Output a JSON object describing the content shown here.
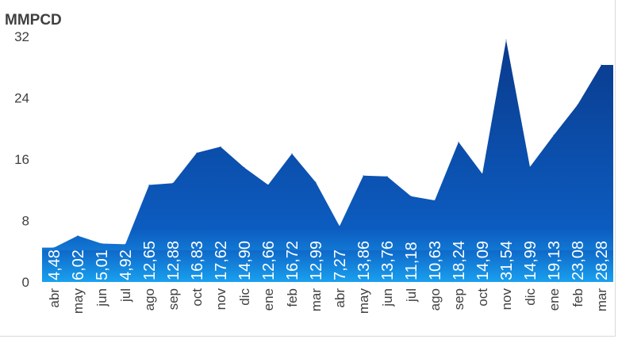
{
  "chart_data": {
    "type": "area",
    "ylabel": "MMPCD",
    "ylim": [
      0,
      32
    ],
    "yticks": [
      0,
      8,
      16,
      24,
      32
    ],
    "grid": false,
    "categories": [
      "abr",
      "may",
      "jun",
      "jul",
      "ago",
      "sep",
      "oct",
      "nov",
      "dic",
      "ene",
      "feb",
      "mar",
      "abr",
      "may",
      "jun",
      "jul",
      "ago",
      "sep",
      "oct",
      "nov",
      "dic",
      "ene",
      "feb",
      "mar"
    ],
    "values": [
      4.48,
      6.02,
      5.01,
      4.92,
      12.65,
      12.88,
      16.83,
      17.62,
      14.9,
      12.66,
      16.72,
      12.99,
      7.27,
      13.86,
      13.76,
      11.18,
      10.63,
      18.24,
      14.09,
      31.54,
      14.99,
      19.13,
      23.08,
      28.28
    ],
    "data_labels": [
      "4,48",
      "6,02",
      "5,01",
      "4,92",
      "12,65",
      "12,88",
      "16,83",
      "17,62",
      "14,90",
      "12,66",
      "16,72",
      "12,99",
      "7,27",
      "13,86",
      "13,76",
      "11,18",
      "10,63",
      "18,24",
      "14,09",
      "31,54",
      "14,99",
      "19,13",
      "23,08",
      "28,28"
    ],
    "colors": {
      "top": "#0a3a8c",
      "mid": "#0c5cc0",
      "bottom": "#1aa0ef",
      "text": "#ffffff",
      "axis": "#404040"
    }
  }
}
